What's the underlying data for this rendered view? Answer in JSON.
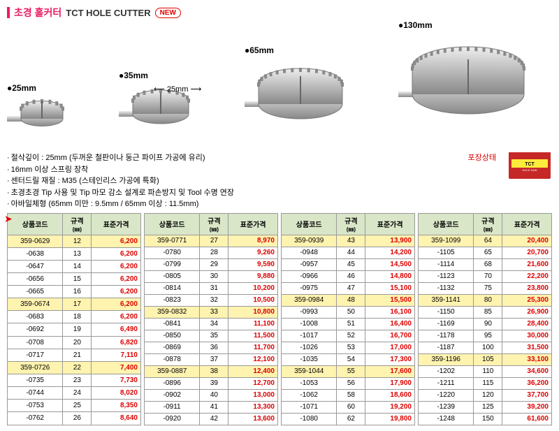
{
  "title": {
    "ko": "초경 홀커터",
    "en": "TCT HOLE CUTTER",
    "new": "NEW"
  },
  "products": [
    {
      "label": "●25mm",
      "size": 60
    },
    {
      "label": "●35mm",
      "size": 80,
      "dim": "25mm"
    },
    {
      "label": "●65mm",
      "size": 120
    },
    {
      "label": "●130mm",
      "size": 160
    }
  ],
  "desc": [
    "절삭깊이 : 25mm (두꺼운 철판이나 둥근 파이프 가공에 유리)",
    "16mm 이상 스프링 장착",
    "센터드릴 재질 : M35 (스테인리스 가공에 특화)",
    "초경초경 Tip 사용 및 Tip 마모 감소 설계로 파손방지 및 Tool 수명 연장",
    "아바일체형 (65mm 미만 : 9.5mm / 65mm 이상 : 11.5mm)"
  ],
  "pack_label": "포장상태",
  "headers": {
    "code": "상품코드",
    "spec": "규격",
    "spec_unit": "(㎜)",
    "price": "표준가격"
  },
  "tables": [
    {
      "rows": [
        {
          "code": "359-0629",
          "spec": "12",
          "price": "6,200",
          "hl": 1
        },
        {
          "code": "-0638",
          "spec": "13",
          "price": "6,200"
        },
        {
          "code": "-0647",
          "spec": "14",
          "price": "6,200"
        },
        {
          "code": "-0656",
          "spec": "15",
          "price": "6,200"
        },
        {
          "code": "-0665",
          "spec": "16",
          "price": "6,200"
        },
        {
          "code": "359-0674",
          "spec": "17",
          "price": "6,200",
          "hl": 1
        },
        {
          "code": "-0683",
          "spec": "18",
          "price": "6,200"
        },
        {
          "code": "-0692",
          "spec": "19",
          "price": "6,490"
        },
        {
          "code": "-0708",
          "spec": "20",
          "price": "6,820"
        },
        {
          "code": "-0717",
          "spec": "21",
          "price": "7,110"
        },
        {
          "code": "359-0726",
          "spec": "22",
          "price": "7,400",
          "hl": 1
        },
        {
          "code": "-0735",
          "spec": "23",
          "price": "7,730"
        },
        {
          "code": "-0744",
          "spec": "24",
          "price": "8,020"
        },
        {
          "code": "-0753",
          "spec": "25",
          "price": "8,350"
        },
        {
          "code": "-0762",
          "spec": "26",
          "price": "8,640"
        }
      ]
    },
    {
      "rows": [
        {
          "code": "359-0771",
          "spec": "27",
          "price": "8,970",
          "hl": 1
        },
        {
          "code": "-0780",
          "spec": "28",
          "price": "9,260"
        },
        {
          "code": "-0799",
          "spec": "29",
          "price": "9,590"
        },
        {
          "code": "-0805",
          "spec": "30",
          "price": "9,880"
        },
        {
          "code": "-0814",
          "spec": "31",
          "price": "10,200"
        },
        {
          "code": "-0823",
          "spec": "32",
          "price": "10,500"
        },
        {
          "code": "359-0832",
          "spec": "33",
          "price": "10,800",
          "hl": 1
        },
        {
          "code": "-0841",
          "spec": "34",
          "price": "11,100"
        },
        {
          "code": "-0850",
          "spec": "35",
          "price": "11,500"
        },
        {
          "code": "-0869",
          "spec": "36",
          "price": "11,700"
        },
        {
          "code": "-0878",
          "spec": "37",
          "price": "12,100"
        },
        {
          "code": "359-0887",
          "spec": "38",
          "price": "12,400",
          "hl": 1
        },
        {
          "code": "-0896",
          "spec": "39",
          "price": "12,700"
        },
        {
          "code": "-0902",
          "spec": "40",
          "price": "13,000"
        },
        {
          "code": "-0911",
          "spec": "41",
          "price": "13,300"
        },
        {
          "code": "-0920",
          "spec": "42",
          "price": "13,600"
        }
      ]
    },
    {
      "rows": [
        {
          "code": "359-0939",
          "spec": "43",
          "price": "13,900",
          "hl": 1
        },
        {
          "code": "-0948",
          "spec": "44",
          "price": "14,200"
        },
        {
          "code": "-0957",
          "spec": "45",
          "price": "14,500"
        },
        {
          "code": "-0966",
          "spec": "46",
          "price": "14,800"
        },
        {
          "code": "-0975",
          "spec": "47",
          "price": "15,100"
        },
        {
          "code": "359-0984",
          "spec": "48",
          "price": "15,500",
          "hl": 1
        },
        {
          "code": "-0993",
          "spec": "50",
          "price": "16,100"
        },
        {
          "code": "-1008",
          "spec": "51",
          "price": "16,400"
        },
        {
          "code": "-1017",
          "spec": "52",
          "price": "16,700"
        },
        {
          "code": "-1026",
          "spec": "53",
          "price": "17,000"
        },
        {
          "code": "-1035",
          "spec": "54",
          "price": "17,300"
        },
        {
          "code": "359-1044",
          "spec": "55",
          "price": "17,600",
          "hl": 1
        },
        {
          "code": "-1053",
          "spec": "56",
          "price": "17,900"
        },
        {
          "code": "-1062",
          "spec": "58",
          "price": "18,600"
        },
        {
          "code": "-1071",
          "spec": "60",
          "price": "19,200"
        },
        {
          "code": "-1080",
          "spec": "62",
          "price": "19,800"
        }
      ]
    },
    {
      "rows": [
        {
          "code": "359-1099",
          "spec": "64",
          "price": "20,400",
          "hl": 1
        },
        {
          "code": "-1105",
          "spec": "65",
          "price": "20,700"
        },
        {
          "code": "-1114",
          "spec": "68",
          "price": "21,600"
        },
        {
          "code": "-1123",
          "spec": "70",
          "price": "22,200"
        },
        {
          "code": "-1132",
          "spec": "75",
          "price": "23,800"
        },
        {
          "code": "359-1141",
          "spec": "80",
          "price": "25,300",
          "hl": 1
        },
        {
          "code": "-1150",
          "spec": "85",
          "price": "26,900"
        },
        {
          "code": "-1169",
          "spec": "90",
          "price": "28,400"
        },
        {
          "code": "-1178",
          "spec": "95",
          "price": "30,000"
        },
        {
          "code": "-1187",
          "spec": "100",
          "price": "31,500"
        },
        {
          "code": "359-1196",
          "spec": "105",
          "price": "33,100",
          "hl": 1
        },
        {
          "code": "-1202",
          "spec": "110",
          "price": "34,600"
        },
        {
          "code": "-1211",
          "spec": "115",
          "price": "36,200"
        },
        {
          "code": "-1220",
          "spec": "120",
          "price": "37,700"
        },
        {
          "code": "-1239",
          "spec": "125",
          "price": "39,200"
        },
        {
          "code": "-1248",
          "spec": "150",
          "price": "61,600"
        }
      ]
    }
  ],
  "colors": {
    "accent": "#e91e63",
    "price": "#d00",
    "header_bg": "#d9e6c8",
    "highlight": "#fff3b0",
    "border": "#999"
  }
}
